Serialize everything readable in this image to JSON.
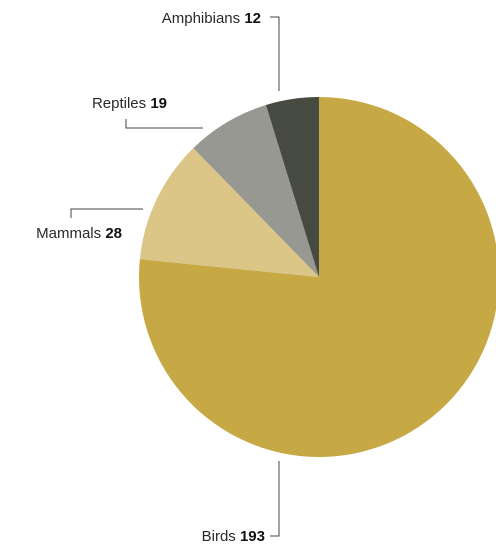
{
  "chart_data": {
    "type": "pie",
    "title": "",
    "slices": [
      {
        "label": "Birds",
        "value": 193,
        "color": "#c6a945"
      },
      {
        "label": "Mammals",
        "value": 28,
        "color": "#dbc587"
      },
      {
        "label": "Reptiles",
        "value": 19,
        "color": "#989892"
      },
      {
        "label": "Amphibians",
        "value": 12,
        "color": "#474a40"
      }
    ],
    "start_angle_deg": 0,
    "direction": "clockwise",
    "legend": "none",
    "data_labels": "outside-with-leader-lines"
  }
}
